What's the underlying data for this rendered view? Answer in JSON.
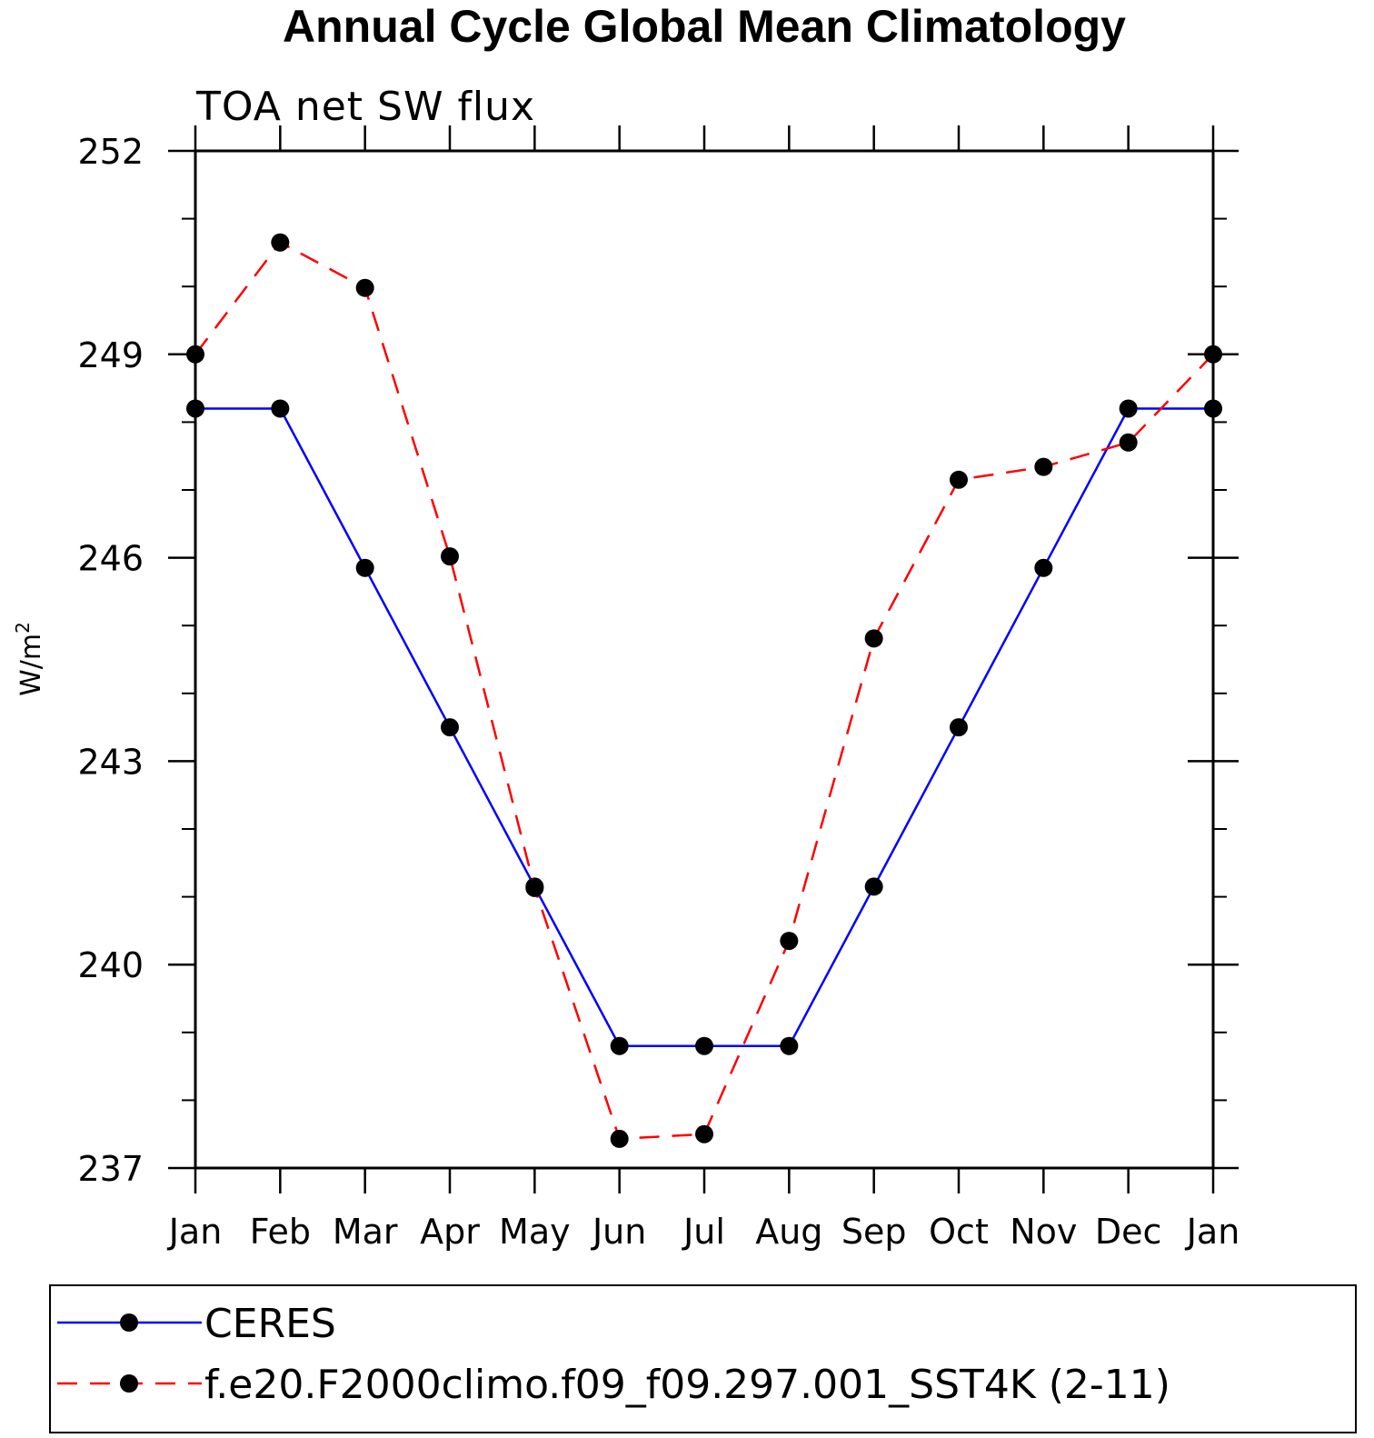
{
  "chart_data": {
    "type": "line",
    "title": "Annual Cycle Global Mean Climatology",
    "subtitle": "TOA net SW flux",
    "ylabel_base": "W/m",
    "ylabel_sup": "2",
    "xlabel": "",
    "categories": [
      "Jan",
      "Feb",
      "Mar",
      "Apr",
      "May",
      "Jun",
      "Jul",
      "Aug",
      "Sep",
      "Oct",
      "Nov",
      "Dec",
      "Jan"
    ],
    "ylim": [
      237,
      252
    ],
    "yticks": [
      237,
      240,
      243,
      246,
      249,
      252
    ],
    "grid": false,
    "legend_position": "bottom",
    "series": [
      {
        "name": "CERES",
        "color": "#0000ff",
        "dash": "solid",
        "values": [
          248.2,
          248.2,
          245.85,
          243.5,
          241.15,
          238.8,
          238.8,
          238.8,
          241.15,
          243.5,
          245.85,
          248.2,
          248.2
        ]
      },
      {
        "name": "f.e20.F2000climo.f09_f09.297.001_SST4K (2-11)",
        "color": "#ff0000",
        "dash": "dashed",
        "values": [
          249.0,
          250.65,
          249.98,
          246.02,
          241.13,
          237.43,
          237.5,
          240.35,
          244.81,
          247.15,
          247.34,
          247.7,
          249.0
        ]
      }
    ]
  }
}
